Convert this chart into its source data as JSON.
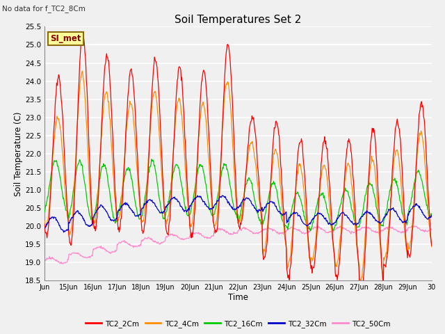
{
  "title": "Soil Temperatures Set 2",
  "subtitle": "No data for f_TC2_8Cm",
  "xlabel": "Time",
  "ylabel": "Soil Temperature (C)",
  "ylim": [
    18.5,
    25.5
  ],
  "xlim_days": [
    14.0,
    30.0
  ],
  "series_colors": {
    "TC2_2Cm": "#FF0000",
    "TC2_4Cm": "#FF8C00",
    "TC2_16Cm": "#00CC00",
    "TC2_32Cm": "#0000CC",
    "TC2_50Cm": "#FF88CC"
  },
  "legend_label": "SI_met",
  "legend_bg": "#FFFF99",
  "legend_border": "#8B6914",
  "bg_color": "#F0F0F0",
  "plot_bg": "#F0F0F0",
  "grid_color": "#FFFFFF",
  "xtick_labels": [
    "Jun",
    "15Jun",
    "16Jun",
    "17Jun",
    "18Jun",
    "19Jun",
    "20Jun",
    "21Jun",
    "22Jun",
    "23Jun",
    "24Jun",
    "25Jun",
    "26Jun",
    "27Jun",
    "28Jun",
    "29Jun",
    "30"
  ],
  "xtick_positions": [
    14,
    15,
    16,
    17,
    18,
    19,
    20,
    21,
    22,
    23,
    24,
    25,
    26,
    27,
    28,
    29,
    30
  ],
  "ytick_labels": [
    "18.5",
    "19.0",
    "19.5",
    "20.0",
    "20.5",
    "21.0",
    "21.5",
    "22.0",
    "22.5",
    "23.0",
    "23.5",
    "24.0",
    "24.5",
    "25.0",
    "25.5"
  ],
  "ytick_positions": [
    18.5,
    19.0,
    19.5,
    20.0,
    20.5,
    21.0,
    21.5,
    22.0,
    22.5,
    23.0,
    23.5,
    24.0,
    24.5,
    25.0,
    25.5
  ]
}
